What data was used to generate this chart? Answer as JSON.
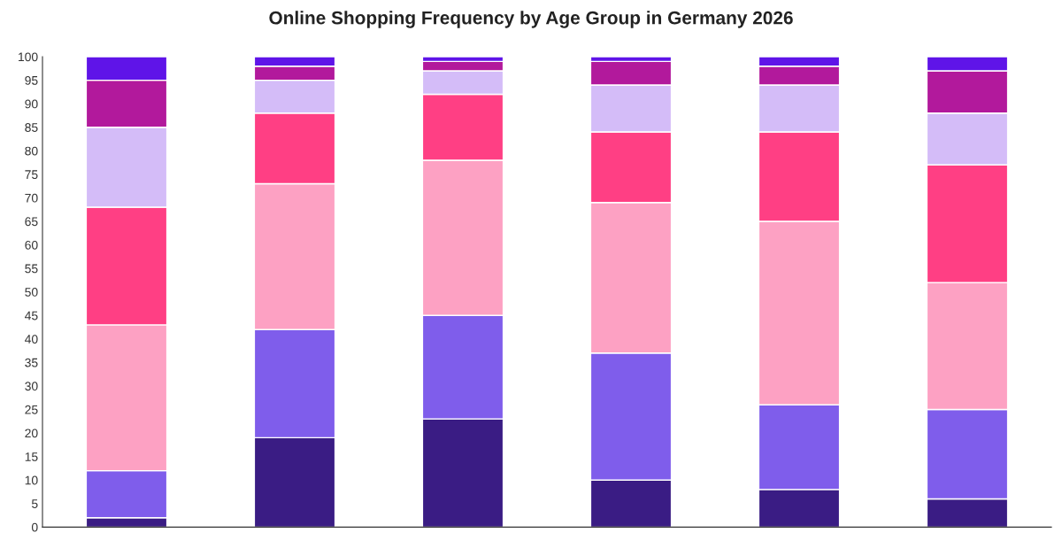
{
  "chart_data": {
    "type": "bar",
    "title": "Online Shopping Frequency by Age Group in Germany 2026",
    "stacked": true,
    "categories": [
      null,
      null,
      null,
      null,
      null,
      null
    ],
    "series": [
      {
        "color": "#3a1c84",
        "values": [
          2,
          19,
          23,
          10,
          8,
          6
        ]
      },
      {
        "color": "#7f5deb",
        "values": [
          10,
          23,
          22,
          27,
          18,
          19
        ]
      },
      {
        "color": "#fda1c3",
        "values": [
          31,
          31,
          33,
          32,
          39,
          27
        ]
      },
      {
        "color": "#ff3f84",
        "values": [
          25,
          15,
          14,
          15,
          19,
          25
        ]
      },
      {
        "color": "#d4bcf8",
        "values": [
          17,
          7,
          5,
          10,
          10,
          11
        ]
      },
      {
        "color": "#b2199c",
        "values": [
          10,
          3,
          2,
          5,
          4,
          9
        ]
      },
      {
        "color": "#5f14e8",
        "values": [
          5,
          2,
          1,
          1,
          2,
          3
        ]
      }
    ],
    "ylim": [
      0,
      100
    ],
    "yticks": [
      0,
      5,
      10,
      15,
      20,
      25,
      30,
      35,
      40,
      45,
      50,
      55,
      60,
      65,
      70,
      75,
      80,
      85,
      90,
      95,
      100
    ],
    "grid": false
  }
}
